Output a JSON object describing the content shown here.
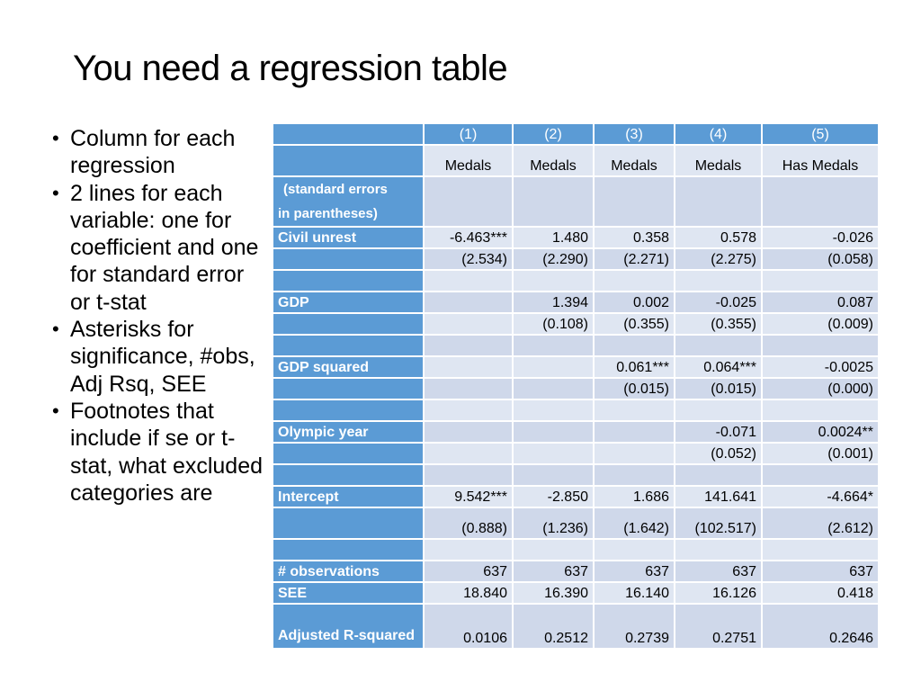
{
  "title": "You need a regression table",
  "bullets": [
    "Column for each regression",
    "2 lines for each variable: one for coefficient and one for standard error or t-stat",
    "Asterisks for significance, #obs, Adj Rsq, SEE",
    "Footnotes that include if se or t-stat, what excluded categories are"
  ],
  "table": {
    "columns": [
      "(1)",
      "(2)",
      "(3)",
      "(4)",
      "(5)"
    ],
    "dependent": [
      "Medals",
      "Medals",
      "Medals",
      "Medals",
      "Has Medals"
    ],
    "note_line1": "(standard errors",
    "note_line2": "in parentheses)",
    "rows": [
      {
        "label": "Civil unrest",
        "values": [
          "-6.463***",
          "1.480",
          "0.358",
          "0.578",
          "-0.026"
        ]
      },
      {
        "label": "",
        "values": [
          "(2.534)",
          "(2.290)",
          "(2.271)",
          "(2.275)",
          "(0.058)"
        ]
      },
      {
        "label": "",
        "values": [
          "",
          "",
          "",
          "",
          ""
        ]
      },
      {
        "label": "GDP",
        "values": [
          "",
          "1.394",
          "0.002",
          "-0.025",
          "0.087"
        ]
      },
      {
        "label": "",
        "values": [
          "",
          "(0.108)",
          "(0.355)",
          "(0.355)",
          "(0.009)"
        ]
      },
      {
        "label": "",
        "values": [
          "",
          "",
          "",
          "",
          ""
        ]
      },
      {
        "label": "GDP squared",
        "values": [
          "",
          "",
          "0.061***",
          "0.064***",
          "-0.0025"
        ]
      },
      {
        "label": "",
        "values": [
          "",
          "",
          "(0.015)",
          "(0.015)",
          "(0.000)"
        ]
      },
      {
        "label": "",
        "values": [
          "",
          "",
          "",
          "",
          ""
        ]
      },
      {
        "label": "Olympic year",
        "values": [
          "",
          "",
          "",
          "-0.071",
          "0.0024**"
        ]
      },
      {
        "label": "",
        "values": [
          "",
          "",
          "",
          "(0.052)",
          "(0.001)"
        ]
      },
      {
        "label": "",
        "values": [
          "",
          "",
          "",
          "",
          ""
        ]
      },
      {
        "label": "Intercept",
        "values": [
          "9.542***",
          "-2.850",
          "1.686",
          "141.641",
          "-4.664*"
        ]
      },
      {
        "label": "",
        "values": [
          "(0.888)",
          "(1.236)",
          "(1.642)",
          "(102.517)",
          "(2.612)"
        ]
      },
      {
        "label": "",
        "values": [
          "",
          "",
          "",
          "",
          ""
        ]
      },
      {
        "label": "# observations",
        "values": [
          "637",
          "637",
          "637",
          "637",
          "637"
        ]
      },
      {
        "label": "SEE",
        "values": [
          "18.840",
          "16.390",
          "16.140",
          "16.126",
          "0.418"
        ]
      },
      {
        "label": "Adjusted R-squared",
        "values": [
          "0.0106",
          "0.2512",
          "0.2739",
          "0.2751",
          "0.2646"
        ]
      }
    ]
  }
}
